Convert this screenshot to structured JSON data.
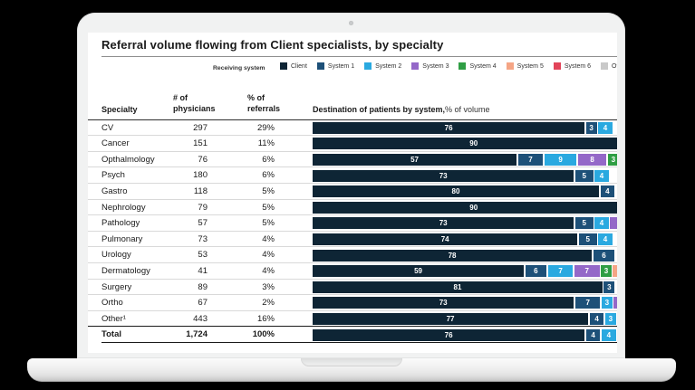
{
  "title": "Referral volume flowing from Client specialists, by specialty",
  "legend": {
    "label": "Receiving system",
    "items": [
      {
        "name": "Client",
        "color": "#0e2535"
      },
      {
        "name": "System 1",
        "color": "#1d5078"
      },
      {
        "name": "System 2",
        "color": "#2aa9e0"
      },
      {
        "name": "System 3",
        "color": "#9468c8"
      },
      {
        "name": "System 4",
        "color": "#2f9e44"
      },
      {
        "name": "System 5",
        "color": "#f5a585"
      },
      {
        "name": "System 6",
        "color": "#e24459"
      },
      {
        "name": "Other",
        "color": "#c9c9c9"
      }
    ]
  },
  "table": {
    "headers": {
      "specialty": "Specialty",
      "physicians": "# of\nphysicians",
      "referrals": "% of\nreferrals",
      "destination_bold": "Destination of patients by system,",
      "destination_regular": "% of volume"
    }
  },
  "chart_data": {
    "type": "bar",
    "orientation": "horizontal-stacked",
    "unit": "% of volume",
    "x_range": [
      0,
      100
    ],
    "note": "bars are clipped by the right edge of the laptop screen",
    "legend_position": "top",
    "rows": [
      {
        "specialty": "CV",
        "physicians": "297",
        "referrals": "29%",
        "segments": [
          {
            "sys": 0,
            "v": 76
          },
          {
            "sys": 1,
            "v": 3
          },
          {
            "sys": 2,
            "v": 4
          }
        ]
      },
      {
        "specialty": "Cancer",
        "physicians": "151",
        "referrals": "11%",
        "segments": [
          {
            "sys": 0,
            "v": 90
          }
        ]
      },
      {
        "specialty": "Opthalmology",
        "physicians": "76",
        "referrals": "6%",
        "segments": [
          {
            "sys": 0,
            "v": 57
          },
          {
            "sys": 1,
            "v": 7
          },
          {
            "sys": 2,
            "v": 9
          },
          {
            "sys": 3,
            "v": 8
          },
          {
            "sys": 4,
            "v": 3
          }
        ]
      },
      {
        "specialty": "Psych",
        "physicians": "180",
        "referrals": "6%",
        "segments": [
          {
            "sys": 0,
            "v": 73
          },
          {
            "sys": 1,
            "v": 5
          },
          {
            "sys": 2,
            "v": 4
          }
        ]
      },
      {
        "specialty": "Gastro",
        "physicians": "118",
        "referrals": "5%",
        "segments": [
          {
            "sys": 0,
            "v": 80
          },
          {
            "sys": 1,
            "v": 4
          }
        ]
      },
      {
        "specialty": "Nephrology",
        "physicians": "79",
        "referrals": "5%",
        "segments": [
          {
            "sys": 0,
            "v": 90
          }
        ]
      },
      {
        "specialty": "Pathology",
        "physicians": "57",
        "referrals": "5%",
        "segments": [
          {
            "sys": 0,
            "v": 73
          },
          {
            "sys": 1,
            "v": 5
          },
          {
            "sys": 2,
            "v": 4
          }
        ],
        "cut_next_sys": 3
      },
      {
        "specialty": "Pulmonary",
        "physicians": "73",
        "referrals": "4%",
        "segments": [
          {
            "sys": 0,
            "v": 74
          },
          {
            "sys": 1,
            "v": 5
          },
          {
            "sys": 2,
            "v": 4
          }
        ]
      },
      {
        "specialty": "Urology",
        "physicians": "53",
        "referrals": "4%",
        "segments": [
          {
            "sys": 0,
            "v": 78
          },
          {
            "sys": 1,
            "v": 6
          }
        ]
      },
      {
        "specialty": "Dermatology",
        "physicians": "41",
        "referrals": "4%",
        "segments": [
          {
            "sys": 0,
            "v": 59
          },
          {
            "sys": 1,
            "v": 6
          },
          {
            "sys": 2,
            "v": 7
          },
          {
            "sys": 3,
            "v": 7
          },
          {
            "sys": 4,
            "v": 3
          }
        ],
        "cut_next_sys": 5
      },
      {
        "specialty": "Surgery",
        "physicians": "89",
        "referrals": "3%",
        "segments": [
          {
            "sys": 0,
            "v": 81
          },
          {
            "sys": 1,
            "v": 3
          }
        ]
      },
      {
        "specialty": "Ortho",
        "physicians": "67",
        "referrals": "2%",
        "segments": [
          {
            "sys": 0,
            "v": 73
          },
          {
            "sys": 1,
            "v": 7
          },
          {
            "sys": 2,
            "v": 3
          }
        ],
        "cut_next_sys": 3
      },
      {
        "specialty": "Other¹",
        "physicians": "443",
        "referrals": "16%",
        "segments": [
          {
            "sys": 0,
            "v": 77
          },
          {
            "sys": 1,
            "v": 4
          },
          {
            "sys": 2,
            "v": 3
          }
        ]
      },
      {
        "specialty": "Total",
        "physicians": "1,724",
        "referrals": "100%",
        "segments": [
          {
            "sys": 0,
            "v": 76
          },
          {
            "sys": 1,
            "v": 4
          },
          {
            "sys": 2,
            "v": 4
          }
        ],
        "emphasis": true
      }
    ]
  }
}
